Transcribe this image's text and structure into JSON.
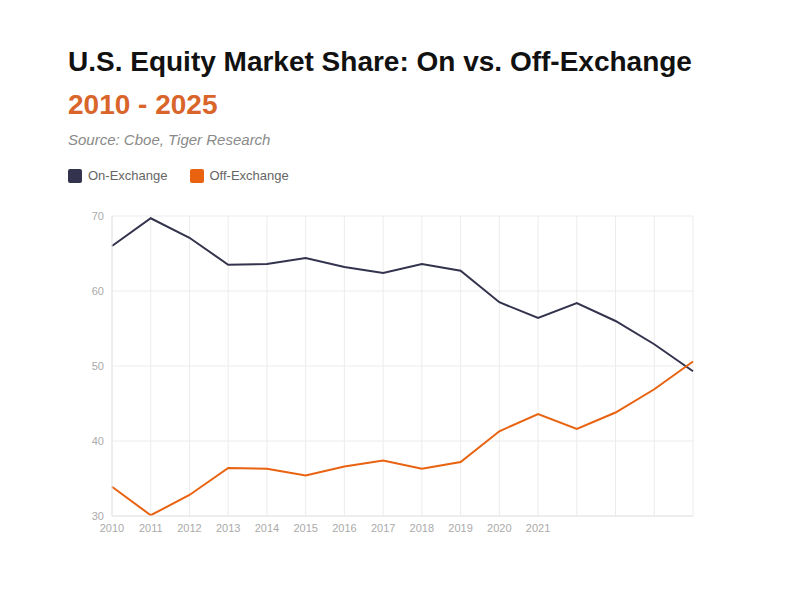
{
  "chart_data": {
    "type": "line",
    "title": "U.S. Equity Market Share: On vs. Off-Exchange",
    "subtitle": "2010 - 2025",
    "source": "Source: Cboe, Tiger Research",
    "categories": [
      "2010",
      "2011",
      "2012",
      "2013",
      "2014",
      "2015",
      "2016",
      "2017",
      "2018",
      "2019",
      "2020",
      "2021",
      null,
      null,
      null,
      null
    ],
    "series": [
      {
        "name": "On-Exchange",
        "color": "#33334d",
        "values": [
          66.0,
          69.7,
          67.1,
          63.5,
          63.6,
          64.4,
          63.2,
          62.4,
          63.6,
          62.7,
          58.5,
          56.4,
          58.4,
          56.0,
          52.9,
          49.3
        ]
      },
      {
        "name": "Off-Exchange",
        "color": "#e8620f",
        "values": [
          33.9,
          30.1,
          32.8,
          36.4,
          36.3,
          35.4,
          36.6,
          37.4,
          36.3,
          37.2,
          41.3,
          43.6,
          41.6,
          43.8,
          46.9,
          50.6
        ]
      }
    ],
    "ylim": [
      30,
      70
    ],
    "yticks": [
      30,
      40,
      50,
      60,
      70
    ],
    "grid": true,
    "legend": "top-left"
  }
}
